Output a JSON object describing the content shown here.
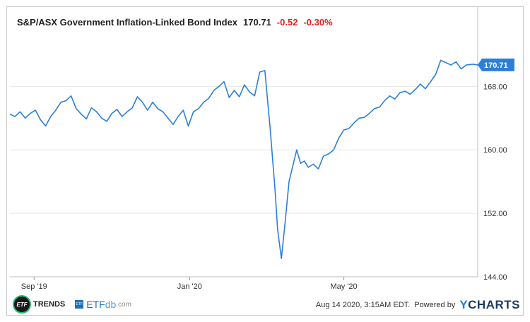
{
  "header": {
    "name": "S&P/ASX Government Inflation-Linked Bond Index",
    "last": "170.71",
    "change": "-0.52",
    "change_pct": "-0.30%"
  },
  "chart_data": {
    "type": "line",
    "title": "S&P/ASX Government Inflation-Linked Bond Index",
    "x_range": [
      "2019-08-13",
      "2020-08-14"
    ],
    "ylim": [
      144,
      178
    ],
    "y_ticks": [
      144,
      152,
      160,
      168
    ],
    "y_tick_labels": [
      "144.00",
      "152.00",
      "160.00",
      "168.00"
    ],
    "x_ticks": [
      "2019-09-01",
      "2020-01-01",
      "2020-05-01"
    ],
    "x_tick_labels": [
      "Sep '19",
      "Jan '20",
      "May '20"
    ],
    "grid": "horizontal",
    "line_color": "#2c7fd8",
    "last_value_label": "170.71",
    "series": [
      {
        "x": [
          "2019-08-13",
          "2019-08-17",
          "2019-08-21",
          "2019-08-25",
          "2019-08-29",
          "2019-09-02",
          "2019-09-06",
          "2019-09-10",
          "2019-09-14",
          "2019-09-18",
          "2019-09-22",
          "2019-09-26",
          "2019-09-30",
          "2019-10-04",
          "2019-10-08",
          "2019-10-12",
          "2019-10-16",
          "2019-10-20",
          "2019-10-24",
          "2019-10-28",
          "2019-11-01",
          "2019-11-05",
          "2019-11-09",
          "2019-11-13",
          "2019-11-17",
          "2019-11-21",
          "2019-11-25",
          "2019-11-29",
          "2019-12-03",
          "2019-12-07",
          "2019-12-11",
          "2019-12-15",
          "2019-12-19",
          "2019-12-23",
          "2019-12-27",
          "2019-12-31",
          "2020-01-04",
          "2020-01-08",
          "2020-01-12",
          "2020-01-16",
          "2020-01-20",
          "2020-01-24",
          "2020-01-28",
          "2020-02-01",
          "2020-02-05",
          "2020-02-09",
          "2020-02-13",
          "2020-02-17",
          "2020-02-21",
          "2020-02-25",
          "2020-02-29",
          "2020-03-04",
          "2020-03-08",
          "2020-03-10",
          "2020-03-13",
          "2020-03-16",
          "2020-03-19",
          "2020-03-22",
          "2020-03-25",
          "2020-03-28",
          "2020-03-31",
          "2020-04-03",
          "2020-04-07",
          "2020-04-11",
          "2020-04-15",
          "2020-04-19",
          "2020-04-23",
          "2020-04-27",
          "2020-05-01",
          "2020-05-05",
          "2020-05-09",
          "2020-05-13",
          "2020-05-17",
          "2020-05-21",
          "2020-05-25",
          "2020-05-29",
          "2020-06-02",
          "2020-06-06",
          "2020-06-10",
          "2020-06-14",
          "2020-06-18",
          "2020-06-22",
          "2020-06-26",
          "2020-06-30",
          "2020-07-04",
          "2020-07-08",
          "2020-07-12",
          "2020-07-16",
          "2020-07-20",
          "2020-07-24",
          "2020-07-28",
          "2020-08-01",
          "2020-08-05",
          "2020-08-10",
          "2020-08-14"
        ],
        "y": [
          164.5,
          164.2,
          164.8,
          164.0,
          164.6,
          165.0,
          163.8,
          163.0,
          164.2,
          165.0,
          166.0,
          166.2,
          166.8,
          165.2,
          164.5,
          163.9,
          165.3,
          164.8,
          164.0,
          163.6,
          164.6,
          165.1,
          164.2,
          164.8,
          165.3,
          166.7,
          166.0,
          165.0,
          166.0,
          165.2,
          164.8,
          164.0,
          163.2,
          164.2,
          165.0,
          163.0,
          164.8,
          165.2,
          166.0,
          166.5,
          167.5,
          168.0,
          168.6,
          166.6,
          167.5,
          166.7,
          168.2,
          167.3,
          166.8,
          169.8,
          170.0,
          163.0,
          155.0,
          150.0,
          146.3,
          151.0,
          156.0,
          158.0,
          160.0,
          158.3,
          158.6,
          157.8,
          158.2,
          157.6,
          159.2,
          159.5,
          160.0,
          161.5,
          162.5,
          162.7,
          163.4,
          164.0,
          164.1,
          164.6,
          165.2,
          165.4,
          166.2,
          166.8,
          166.4,
          167.2,
          167.4,
          167.0,
          167.6,
          168.3,
          167.7,
          168.6,
          169.5,
          171.3,
          171.0,
          170.7,
          171.1,
          170.2,
          170.7,
          170.8,
          170.71
        ]
      }
    ]
  },
  "footer": {
    "logo1_badge": "ETF",
    "logo1_text": "TRENDS",
    "logo2_badge": "ETF",
    "logo2_main": "ETF",
    "logo2_accent": "db",
    "logo2_suffix": ".com",
    "timestamp": "Aug 14 2020, 3:15AM EDT.",
    "powered_by": "Powered by",
    "brand_y": "Y",
    "brand_rest": "CHARTS"
  }
}
